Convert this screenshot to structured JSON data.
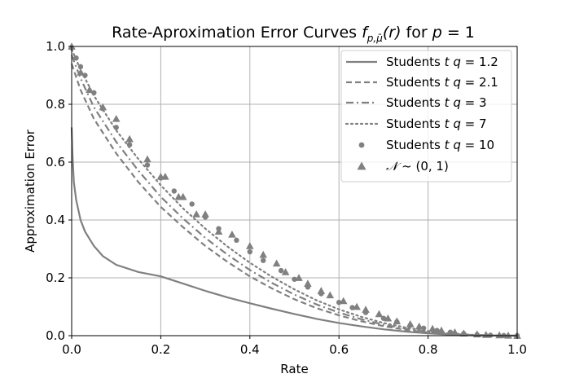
{
  "chart_data": {
    "type": "line",
    "title": "Rate-Aproximation Error Curves f_{p,μ̄}(r) for p = 1",
    "title_parts": {
      "prefix": "Rate-Aproximation Error Curves ",
      "f": "f",
      "sub": "p,μ̄",
      "arg": "(r)",
      "for": " for ",
      "p": "p",
      "eq": " = 1"
    },
    "xlabel": "Rate",
    "ylabel": "Approximation Error",
    "xlim": [
      0.0,
      1.0
    ],
    "ylim": [
      0.0,
      1.0
    ],
    "xticks": [
      "0.0",
      "0.2",
      "0.4",
      "0.6",
      "0.8",
      "1.0"
    ],
    "yticks": [
      "0.0",
      "0.2",
      "0.4",
      "0.6",
      "0.8",
      "1.0"
    ],
    "grid": true,
    "legend_position": "top-right",
    "color": "#808080",
    "series": [
      {
        "name": "Students t q = 1.2",
        "label_prefix": "Students ",
        "label_t": "t",
        "label_q": "q",
        "label_eq": " = 1.2",
        "style": "solid",
        "x": [
          0.0,
          0.002,
          0.005,
          0.01,
          0.02,
          0.03,
          0.05,
          0.07,
          0.1,
          0.15,
          0.2,
          0.25,
          0.3,
          0.35,
          0.4,
          0.45,
          0.5,
          0.55,
          0.6,
          0.65,
          0.7,
          0.75,
          0.8,
          0.85,
          0.9,
          0.95,
          1.0
        ],
        "y": [
          0.72,
          0.62,
          0.53,
          0.47,
          0.4,
          0.36,
          0.31,
          0.275,
          0.245,
          0.22,
          0.205,
          0.18,
          0.155,
          0.132,
          0.112,
          0.093,
          0.075,
          0.058,
          0.044,
          0.032,
          0.022,
          0.014,
          0.008,
          0.004,
          0.0015,
          0.0004,
          0.0
        ]
      },
      {
        "name": "Students t q = 2.1",
        "label_prefix": "Students ",
        "label_t": "t",
        "label_q": "q",
        "label_eq": " = 2.1",
        "style": "dashed",
        "x": [
          0.0,
          0.02,
          0.05,
          0.1,
          0.15,
          0.2,
          0.25,
          0.3,
          0.35,
          0.4,
          0.45,
          0.5,
          0.55,
          0.6,
          0.65,
          0.7,
          0.75,
          0.8,
          0.85,
          0.9,
          0.95,
          1.0
        ],
        "y": [
          0.94,
          0.85,
          0.75,
          0.63,
          0.53,
          0.445,
          0.375,
          0.31,
          0.255,
          0.205,
          0.163,
          0.126,
          0.095,
          0.07,
          0.05,
          0.033,
          0.02,
          0.011,
          0.005,
          0.002,
          0.0005,
          0.0
        ]
      },
      {
        "name": "Students t q = 3",
        "label_prefix": "Students ",
        "label_t": "t",
        "label_q": "q",
        "label_eq": " = 3",
        "style": "dashdot",
        "x": [
          0.0,
          0.02,
          0.05,
          0.1,
          0.15,
          0.2,
          0.25,
          0.3,
          0.35,
          0.4,
          0.45,
          0.5,
          0.55,
          0.6,
          0.65,
          0.7,
          0.75,
          0.8,
          0.85,
          0.9,
          0.95,
          1.0
        ],
        "y": [
          0.97,
          0.89,
          0.79,
          0.67,
          0.57,
          0.48,
          0.405,
          0.338,
          0.28,
          0.227,
          0.182,
          0.142,
          0.108,
          0.08,
          0.057,
          0.038,
          0.024,
          0.013,
          0.006,
          0.0025,
          0.0006,
          0.0
        ]
      },
      {
        "name": "Students t q = 7",
        "label_prefix": "Students ",
        "label_t": "t",
        "label_q": "q",
        "label_eq": " = 7",
        "style": "dotted",
        "x": [
          0.0,
          0.02,
          0.05,
          0.1,
          0.15,
          0.2,
          0.25,
          0.3,
          0.35,
          0.4,
          0.45,
          0.5,
          0.55,
          0.6,
          0.65,
          0.7,
          0.75,
          0.8,
          0.85,
          0.9,
          0.95,
          1.0
        ],
        "y": [
          0.99,
          0.92,
          0.83,
          0.71,
          0.61,
          0.52,
          0.44,
          0.37,
          0.308,
          0.252,
          0.203,
          0.16,
          0.122,
          0.091,
          0.065,
          0.044,
          0.028,
          0.016,
          0.008,
          0.003,
          0.0008,
          0.0
        ]
      },
      {
        "name": "Students t q = 10",
        "label_prefix": "Students ",
        "label_t": "t",
        "label_q": "q",
        "label_eq": " = 10",
        "style": "circle-markers",
        "x": [
          0.0,
          0.01,
          0.02,
          0.03,
          0.05,
          0.07,
          0.1,
          0.13,
          0.17,
          0.2,
          0.23,
          0.27,
          0.3,
          0.33,
          0.37,
          0.4,
          0.43,
          0.47,
          0.5,
          0.53,
          0.56,
          0.6,
          0.63,
          0.66,
          0.7,
          0.73,
          0.76,
          0.79,
          0.82,
          0.85,
          0.88,
          0.91,
          0.94,
          0.97,
          1.0
        ],
        "y": [
          0.995,
          0.96,
          0.93,
          0.9,
          0.84,
          0.785,
          0.72,
          0.66,
          0.59,
          0.545,
          0.5,
          0.455,
          0.41,
          0.37,
          0.33,
          0.29,
          0.26,
          0.225,
          0.195,
          0.168,
          0.145,
          0.115,
          0.097,
          0.08,
          0.06,
          0.048,
          0.036,
          0.026,
          0.018,
          0.012,
          0.007,
          0.0035,
          0.0015,
          0.0004,
          0.0
        ]
      },
      {
        "name": "𝒩 ~ (0, 1)",
        "label_N": "𝒩",
        "label_rest": " ~ (0, 1)",
        "style": "triangle-markers",
        "x": [
          0.0,
          0.02,
          0.04,
          0.07,
          0.1,
          0.13,
          0.17,
          0.2,
          0.21,
          0.24,
          0.25,
          0.28,
          0.3,
          0.33,
          0.36,
          0.4,
          0.43,
          0.46,
          0.48,
          0.51,
          0.53,
          0.56,
          0.58,
          0.61,
          0.64,
          0.66,
          0.69,
          0.71,
          0.73,
          0.76,
          0.78,
          0.81,
          0.83,
          0.86,
          0.88,
          0.91,
          0.93,
          0.96,
          0.98,
          1.0
        ],
        "y": [
          1.0,
          0.91,
          0.85,
          0.79,
          0.75,
          0.68,
          0.61,
          0.55,
          0.55,
          0.48,
          0.48,
          0.42,
          0.42,
          0.36,
          0.35,
          0.31,
          0.28,
          0.25,
          0.22,
          0.2,
          0.18,
          0.155,
          0.14,
          0.12,
          0.1,
          0.09,
          0.075,
          0.06,
          0.05,
          0.04,
          0.032,
          0.024,
          0.018,
          0.012,
          0.008,
          0.005,
          0.003,
          0.0015,
          0.0005,
          0.0
        ]
      }
    ]
  }
}
